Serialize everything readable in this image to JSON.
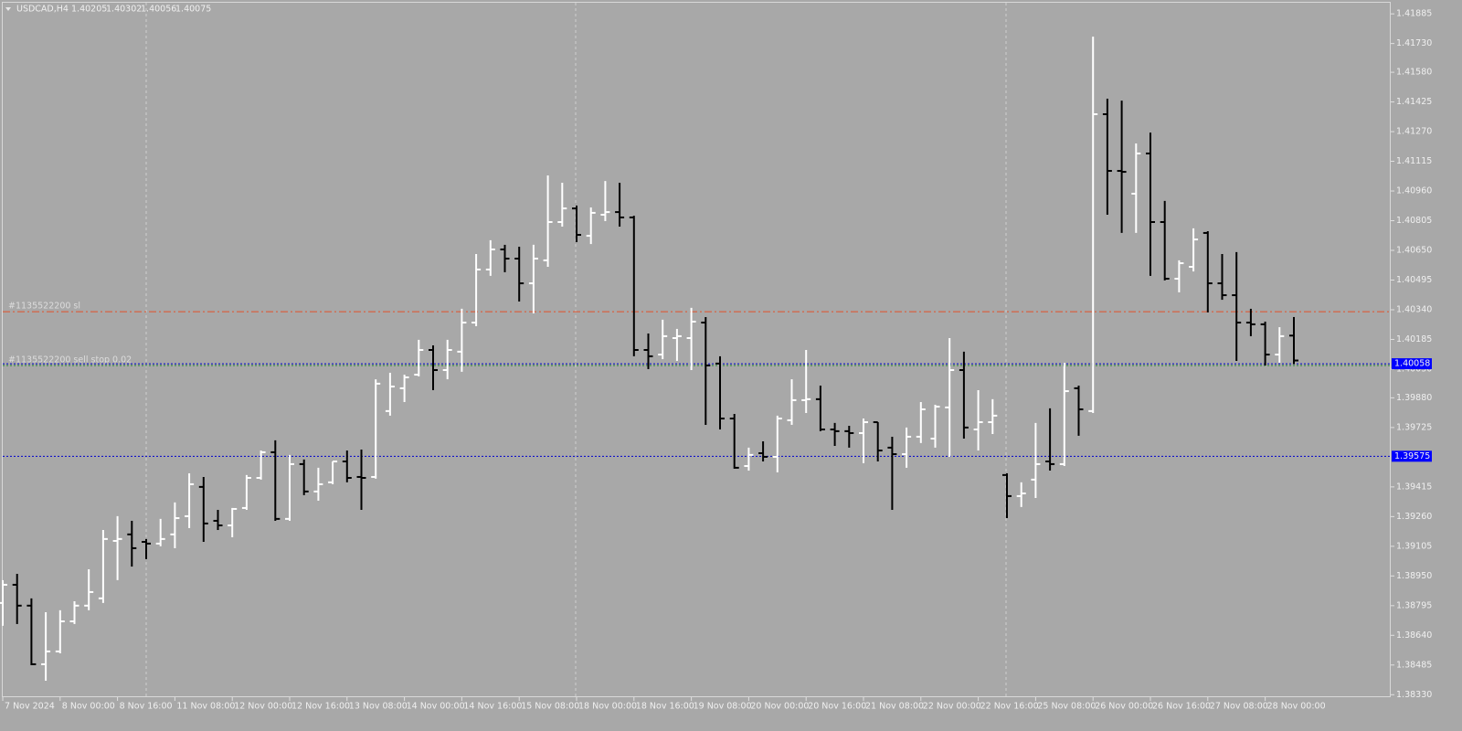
{
  "chart_data": {
    "type": "ohlc",
    "title": "USDCAD,H4",
    "categories": [
      "7 Nov 2024",
      null,
      null,
      null,
      "8 Nov 00:00",
      null,
      null,
      null,
      "8 Nov 16:00",
      null,
      null,
      null,
      "11 Nov 08:00",
      null,
      null,
      null,
      "12 Nov 00:00",
      null,
      null,
      null,
      "12 Nov 16:00",
      null,
      null,
      null,
      "13 Nov 08:00",
      null,
      null,
      null,
      "14 Nov 00:00",
      null,
      null,
      null,
      "14 Nov 16:00",
      null,
      null,
      null,
      "15 Nov 08:00",
      null,
      null,
      null,
      "18 Nov 00:00",
      null,
      null,
      null,
      "18 Nov 16:00",
      null,
      null,
      null,
      "19 Nov 08:00",
      null,
      null,
      null,
      "20 Nov 00:00",
      null,
      null,
      null,
      "20 Nov 16:00",
      null,
      null,
      null,
      "21 Nov 08:00",
      null,
      null,
      null,
      "22 Nov 00:00",
      null,
      null,
      null,
      "22 Nov 16:00",
      null,
      null,
      null,
      "25 Nov 08:00",
      null,
      null,
      null,
      "26 Nov 00:00",
      null,
      null,
      null,
      "26 Nov 16:00",
      null,
      null,
      null,
      "27 Nov 08:00",
      null,
      null,
      null,
      "28 Nov 00:00",
      null,
      null
    ],
    "open": [
      1.38809,
      1.38904,
      1.38795,
      1.38489,
      1.38556,
      1.38713,
      1.38795,
      1.38833,
      1.39133,
      1.39167,
      1.39128,
      1.39119,
      1.39167,
      1.39262,
      1.39415,
      1.39238,
      1.39214,
      1.39305,
      1.39462,
      1.39596,
      1.39248,
      1.39534,
      1.39391,
      1.39439,
      1.39548,
      1.39467,
      1.39467,
      1.39811,
      1.3993,
      1.40001,
      1.4013,
      1.40025,
      1.40121,
      1.40273,
      1.4055,
      1.40655,
      1.40607,
      1.40478,
      1.40598,
      1.40798,
      1.40869,
      1.40726,
      1.40836,
      1.4085,
      1.40822,
      1.4013,
      1.40106,
      1.40192,
      1.40192,
      1.40273,
      1.40059,
      1.39772,
      1.39524,
      1.39591,
      1.39572,
      1.39763,
      1.39868,
      1.39873,
      1.39715,
      1.39706,
      1.39696,
      1.39753,
      1.3962,
      1.39586,
      1.39677,
      1.39667,
      1.3983,
      1.40025,
      1.39715,
      1.39753,
      1.39477,
      1.39367,
      1.39453,
      1.39548,
      1.39534,
      1.3993,
      1.39811,
      1.41361,
      1.41065,
      1.40946,
      1.41156,
      1.40798,
      1.40502,
      1.40564,
      1.40741,
      1.40478,
      1.40416,
      1.40273,
      1.40264,
      1.40106,
      1.40205
    ],
    "high": [
      1.38928,
      1.38961,
      1.38833,
      1.38761,
      1.38771,
      1.38818,
      1.38985,
      1.3919,
      1.39262,
      1.39238,
      1.39143,
      1.39248,
      1.39334,
      1.39486,
      1.39467,
      1.39295,
      1.39305,
      1.39477,
      1.39605,
      1.39658,
      1.39582,
      1.39558,
      1.39515,
      1.39548,
      1.39605,
      1.3961,
      1.39977,
      1.40011,
      1.40001,
      1.40183,
      1.40154,
      1.40183,
      1.40345,
      1.40631,
      1.40703,
      1.40679,
      1.40669,
      1.40679,
      1.41041,
      1.41003,
      1.40884,
      1.40874,
      1.41012,
      1.41003,
      1.40831,
      1.40216,
      1.40288,
      1.4024,
      1.4035,
      1.40302,
      1.40097,
      1.39796,
      1.3962,
      1.39653,
      1.39787,
      1.39977,
      1.4013,
      1.39944,
      1.39749,
      1.39734,
      1.39772,
      1.39753,
      1.39677,
      1.39725,
      1.39858,
      1.39844,
      1.40192,
      1.40121,
      1.3992,
      1.39873,
      1.39486,
      1.39439,
      1.39749,
      1.39825,
      1.40063,
      1.39944,
      1.41766,
      1.41442,
      1.41432,
      1.41208,
      1.41265,
      1.40908,
      1.40598,
      1.40765,
      1.4075,
      1.40631,
      1.40641,
      1.40345,
      1.40278,
      1.40249,
      1.40302
    ],
    "low": [
      1.3869,
      1.38699,
      1.38484,
      1.38403,
      1.38546,
      1.38699,
      1.38771,
      1.38809,
      1.38928,
      1.38999,
      1.39038,
      1.39105,
      1.39095,
      1.392,
      1.39128,
      1.3919,
      1.39152,
      1.39295,
      1.39453,
      1.39238,
      1.39238,
      1.39372,
      1.39343,
      1.39429,
      1.39439,
      1.39295,
      1.39458,
      1.39787,
      1.39858,
      1.39992,
      1.3992,
      1.39977,
      1.40016,
      1.40254,
      1.40517,
      1.40536,
      1.40383,
      1.40321,
      1.40564,
      1.40774,
      1.40693,
      1.40683,
      1.40803,
      1.40774,
      1.40097,
      1.4003,
      1.40082,
      1.40073,
      1.40025,
      1.39739,
      1.39715,
      1.3951,
      1.395,
      1.39548,
      1.39491,
      1.39739,
      1.39801,
      1.39706,
      1.39629,
      1.3962,
      1.39539,
      1.39548,
      1.39295,
      1.39515,
      1.39644,
      1.3962,
      1.39572,
      1.39667,
      1.39605,
      1.39691,
      1.39252,
      1.3931,
      1.39357,
      1.395,
      1.39524,
      1.39682,
      1.39801,
      1.40836,
      1.40741,
      1.40741,
      1.40517,
      1.40493,
      1.40431,
      1.4054,
      1.40326,
      1.40392,
      1.40073,
      1.40202,
      1.40049,
      1.40063,
      1.40056
    ],
    "close": [
      1.38904,
      1.38795,
      1.38489,
      1.38556,
      1.38713,
      1.38795,
      1.38866,
      1.39143,
      1.39143,
      1.39095,
      1.39119,
      1.39143,
      1.39252,
      1.39429,
      1.39224,
      1.39214,
      1.393,
      1.39462,
      1.39596,
      1.39248,
      1.39534,
      1.39391,
      1.39429,
      1.39548,
      1.39462,
      1.39462,
      1.39954,
      1.39939,
      1.39987,
      1.4013,
      1.40025,
      1.4013,
      1.40273,
      1.4055,
      1.40655,
      1.40607,
      1.40478,
      1.40607,
      1.40798,
      1.40869,
      1.40731,
      1.40846,
      1.4085,
      1.40822,
      1.4013,
      1.40097,
      1.40202,
      1.40202,
      1.40278,
      1.40049,
      1.39772,
      1.39515,
      1.39582,
      1.39572,
      1.39772,
      1.39868,
      1.39873,
      1.39715,
      1.39706,
      1.39696,
      1.39753,
      1.39605,
      1.39586,
      1.39677,
      1.3982,
      1.39834,
      1.40025,
      1.39725,
      1.39753,
      1.39787,
      1.39367,
      1.39381,
      1.39534,
      1.39534,
      1.39915,
      1.3982,
      1.41361,
      1.41065,
      1.4106,
      1.41156,
      1.40798,
      1.40502,
      1.40583,
      1.40707,
      1.40478,
      1.40416,
      1.40273,
      1.40264,
      1.40106,
      1.40202,
      1.40075
    ],
    "up_color": "#ffffff",
    "down_color": "#000000",
    "ylim": [
      1.38317,
      1.41943
    ],
    "yticks": [
      1.41885,
      {
        "value": 1.4173,
        "label": "1.41730"
      },
      {
        "value": 1.4158,
        "label": "1.41580"
      },
      1.41425,
      {
        "value": 1.4127,
        "label": "1.41270"
      },
      1.41115,
      {
        "value": 1.4096,
        "label": "1.40960"
      },
      1.40805,
      {
        "value": 1.4065,
        "label": "1.40650"
      },
      1.40495,
      {
        "value": 1.4034,
        "label": "1.40340"
      },
      1.40185,
      {
        "value": 1.4003,
        "label": "1.40030"
      },
      {
        "value": 1.3988,
        "label": "1.39880"
      },
      1.39725,
      1.39415,
      {
        "value": 1.3926,
        "label": "1.39260"
      },
      1.39105,
      {
        "value": 1.3895,
        "label": "1.38950"
      },
      1.38795,
      {
        "value": 1.3864,
        "label": "1.38640"
      },
      1.38485,
      {
        "value": 1.3833,
        "label": "1.38330"
      }
    ],
    "grid": false,
    "lines": [
      {
        "name": "#1135522200 sl",
        "value": 1.4033,
        "color": "#e2502a",
        "style": "dashdot"
      },
      {
        "name": "#1135522200 sell stop 0.02",
        "value": 1.40049,
        "color": "#1f8a2a",
        "style": "dot"
      },
      {
        "value": 1.40058,
        "color": "#0000cc",
        "style": "dot",
        "tag": "#0000ff"
      },
      {
        "value": 1.39575,
        "color": "#0000cc",
        "style": "dot",
        "tag": "#0000ff"
      }
    ]
  }
}
